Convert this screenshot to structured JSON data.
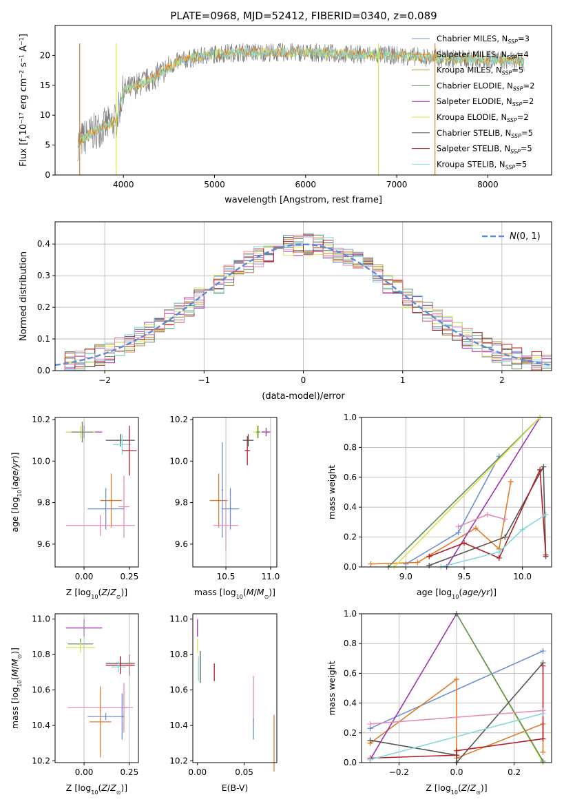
{
  "figure": {
    "title": "PLATE=0968, MJD=52412, FIBERID=0340, z=0.089"
  },
  "colors": {
    "chabrier_miles": "#6b8fd6",
    "salpeter_miles": "#e07b2a",
    "kroupa_miles": "#b08a45",
    "chabrier_elodie": "#5f8c5f",
    "salpeter_elodie": "#a030b0",
    "kroupa_elodie": "#d8e64a",
    "chabrier_stelib": "#555555",
    "salpeter_stelib": "#b01e24",
    "kroupa_stelib": "#84d8dd",
    "pink": "#e68ab8",
    "spectrum_data": "#808080",
    "normal": "#5b8dd6"
  },
  "chart_data": [
    {
      "id": "spectrum",
      "type": "line",
      "title": "PLATE=0968, MJD=52412, FIBERID=0340, z=0.089",
      "xlabel": "wavelength [Angstrom, rest frame]",
      "ylabel": "Flux [f",
      "xlim": [
        3250,
        8700
      ],
      "ylim": [
        0,
        25
      ],
      "xticks": [
        4000,
        5000,
        6000,
        7000,
        8000
      ],
      "yticks": [
        0,
        5,
        10,
        15,
        20
      ],
      "spikes": [
        {
          "x": 3520,
          "color": "#e07b2a"
        },
        {
          "x": 3920,
          "color": "#d8e64a"
        },
        {
          "x": 6800,
          "color": "#d8e64a"
        },
        {
          "x": 7420,
          "color": "#e07b2a"
        }
      ],
      "continuum": {
        "x": [
          3500,
          3700,
          3920,
          4000,
          4300,
          4600,
          4900,
          5200,
          5600,
          6000,
          6500,
          7000,
          7500,
          8000,
          8400
        ],
        "y": [
          5.5,
          7.5,
          9,
          14,
          16,
          19,
          20,
          20.5,
          20.5,
          20.5,
          20.2,
          20,
          19.5,
          19.3,
          19
        ]
      },
      "legend": [
        {
          "label": "Chabrier MILES, N",
          "n": "=3",
          "color": "#6b8fd6"
        },
        {
          "label": "Salpeter MILES, N",
          "n": "=4",
          "color": "#e07b2a"
        },
        {
          "label": "Kroupa MILES, N",
          "n": "=5",
          "color": "#b08a45"
        },
        {
          "label": "Chabrier ELODIE, N",
          "n": "=2",
          "color": "#5f8c5f"
        },
        {
          "label": "Salpeter ELODIE, N",
          "n": "=2",
          "color": "#a030b0"
        },
        {
          "label": "Kroupa ELODIE, N",
          "n": "=2",
          "color": "#d8e64a"
        },
        {
          "label": "Chabrier STELIB, N",
          "n": "=5",
          "color": "#555555"
        },
        {
          "label": "Salpeter STELIB, N",
          "n": "=5",
          "color": "#b01e24"
        },
        {
          "label": "Kroupa STELIB, N",
          "n": "=5",
          "color": "#84d8dd"
        }
      ],
      "legend_sub": "SSP",
      "legend_placement": "top-right"
    },
    {
      "id": "residuals",
      "type": "line",
      "xlabel": "(data-model)/error",
      "ylabel": "Normed distribution",
      "xlim": [
        -2.5,
        2.5
      ],
      "ylim": [
        0,
        0.47
      ],
      "xticks": [
        -2,
        -1,
        0,
        1,
        2
      ],
      "yticks": [
        0.0,
        0.1,
        0.2,
        0.3,
        0.4
      ],
      "grid": true,
      "legend": [
        {
          "label": "N(0,1)",
          "color": "#5b8dd6"
        }
      ],
      "legend_placement": "top-right",
      "series_colors": [
        "#6b8fd6",
        "#e07b2a",
        "#b08a45",
        "#5f8c5f",
        "#a030b0",
        "#d8e64a",
        "#555555",
        "#b01e24",
        "#84d8dd",
        "#e68ab8"
      ]
    },
    {
      "id": "z_age",
      "type": "scatter",
      "xlabel": "Z [log",
      "ylabel": "age  [log",
      "xlim": [
        -0.16,
        0.3
      ],
      "ylim": [
        9.49,
        10.21
      ],
      "xticks": [
        0.0,
        0.25
      ],
      "yticks": [
        9.6,
        9.8,
        10.0,
        10.2
      ],
      "points": [
        {
          "x": 0.0,
          "y": 10.14,
          "xe": 0.1,
          "ye": 0.03,
          "color": "#a030b0"
        },
        {
          "x": -0.02,
          "y": 10.14,
          "xe": 0.08,
          "ye": 0.03,
          "color": "#d8e64a"
        },
        {
          "x": -0.01,
          "y": 10.14,
          "xe": 0.06,
          "ye": 0.05,
          "color": "#5f8c5f"
        },
        {
          "x": 0.2,
          "y": 10.1,
          "xe": 0.08,
          "ye": 0.03,
          "color": "#555555"
        },
        {
          "x": 0.21,
          "y": 10.08,
          "xe": 0.05,
          "ye": 0.05,
          "color": "#84d8dd"
        },
        {
          "x": 0.25,
          "y": 10.05,
          "xe": 0.04,
          "ye": 0.12,
          "color": "#b01e24"
        },
        {
          "x": 0.15,
          "y": 9.81,
          "xe": 0.06,
          "ye": 0.13,
          "color": "#e07b2a"
        },
        {
          "x": 0.22,
          "y": 9.78,
          "xe": 0.03,
          "ye": 0.15,
          "color": "#e68ab8"
        },
        {
          "x": 0.12,
          "y": 9.77,
          "xe": 0.1,
          "ye": 0.1,
          "color": "#6b8fd6"
        },
        {
          "x": 0.09,
          "y": 9.69,
          "xe": 0.19,
          "ye": 0.05,
          "color": "#e68ab8"
        }
      ]
    },
    {
      "id": "mass_age",
      "type": "scatter",
      "xlabel": "mass [log",
      "ylabel": "",
      "xlim": [
        10.13,
        11.07
      ],
      "ylim": [
        9.49,
        10.21
      ],
      "xticks": [
        10.5,
        11.0
      ],
      "yticks": [
        9.6,
        9.8,
        10.0,
        10.2
      ],
      "points": [
        {
          "x": 10.95,
          "y": 10.14,
          "xe": 0.05,
          "ye": 0.02,
          "color": "#a030b0"
        },
        {
          "x": 10.85,
          "y": 10.14,
          "xe": 0.05,
          "ye": 0.03,
          "color": "#d8e64a"
        },
        {
          "x": 10.86,
          "y": 10.14,
          "xe": 0.02,
          "ye": 0.03,
          "color": "#5f8c5f"
        },
        {
          "x": 10.75,
          "y": 10.1,
          "xe": 0.06,
          "ye": 0.03,
          "color": "#555555"
        },
        {
          "x": 10.74,
          "y": 10.05,
          "xe": 0.03,
          "ye": 0.07,
          "color": "#b01e24"
        },
        {
          "x": 10.42,
          "y": 9.81,
          "xe": 0.1,
          "ye": 0.13,
          "color": "#e07b2a"
        },
        {
          "x": 10.46,
          "y": 9.86,
          "xe": 0.01,
          "ye": 0.23,
          "color": "#6b8fd6"
        },
        {
          "x": 10.55,
          "y": 9.77,
          "xe": 0.1,
          "ye": 0.1,
          "color": "#6b8fd6"
        },
        {
          "x": 10.5,
          "y": 9.69,
          "xe": 0.14,
          "ye": 0.12,
          "color": "#e68ab8"
        }
      ]
    },
    {
      "id": "age_weight",
      "type": "line",
      "xlabel": "age  [log",
      "ylabel": "mass weight",
      "xlim": [
        8.62,
        10.25
      ],
      "ylim": [
        0,
        1
      ],
      "xticks": [
        9.0,
        9.5,
        10.0
      ],
      "yticks": [
        0.0,
        0.2,
        0.4,
        0.6,
        0.8,
        1.0
      ],
      "grid": true,
      "series": [
        {
          "color": "#6b8fd6",
          "x": [
            9.0,
            9.45,
            9.8
          ],
          "y": [
            0.02,
            0.23,
            0.74
          ]
        },
        {
          "color": "#e07b2a",
          "x": [
            8.7,
            9.1,
            9.6,
            9.8,
            9.9
          ],
          "y": [
            0.02,
            0.03,
            0.26,
            0.12,
            0.57
          ]
        },
        {
          "color": "#5f8c5f",
          "x": [
            8.85,
            10.15
          ],
          "y": [
            0.0,
            1.0
          ]
        },
        {
          "color": "#a030b0",
          "x": [
            9.35,
            10.15
          ],
          "y": [
            0.0,
            1.0
          ]
        },
        {
          "color": "#d8e64a",
          "x": [
            8.9,
            10.15
          ],
          "y": [
            0.0,
            1.0
          ]
        },
        {
          "color": "#555555",
          "x": [
            9.2,
            9.85,
            10.18,
            10.2
          ],
          "y": [
            0.01,
            0.2,
            0.67,
            0.07
          ]
        },
        {
          "color": "#b01e24",
          "x": [
            9.2,
            9.5,
            9.8,
            10.15,
            10.2
          ],
          "y": [
            0.07,
            0.16,
            0.06,
            0.65,
            0.08
          ]
        },
        {
          "color": "#84d8dd",
          "x": [
            9.3,
            9.8,
            10.0,
            10.2
          ],
          "y": [
            0.0,
            0.1,
            0.25,
            0.35
          ]
        },
        {
          "color": "#e68ab8",
          "x": [
            9.45,
            9.7,
            9.85
          ],
          "y": [
            0.27,
            0.35,
            0.32
          ]
        }
      ]
    },
    {
      "id": "z_mass",
      "type": "scatter",
      "xlabel": "Z [log",
      "ylabel": "mass [log",
      "xlim": [
        -0.16,
        0.3
      ],
      "ylim": [
        10.19,
        11.03
      ],
      "xticks": [
        0.0,
        0.25
      ],
      "yticks": [
        10.2,
        10.4,
        10.6,
        10.8,
        11.0
      ],
      "points": [
        {
          "x": 0.0,
          "y": 10.95,
          "xe": 0.1,
          "ye": 0.05,
          "color": "#a030b0"
        },
        {
          "x": -0.02,
          "y": 10.86,
          "xe": 0.07,
          "ye": 0.03,
          "color": "#5f8c5f"
        },
        {
          "x": -0.02,
          "y": 10.84,
          "xe": 0.08,
          "ye": 0.03,
          "color": "#d8e64a"
        },
        {
          "x": 0.2,
          "y": 10.75,
          "xe": 0.08,
          "ye": 0.04,
          "color": "#555555"
        },
        {
          "x": 0.2,
          "y": 10.74,
          "xe": 0.08,
          "ye": 0.05,
          "color": "#b01e24"
        },
        {
          "x": 0.25,
          "y": 10.74,
          "xe": 0.02,
          "ye": 0.06,
          "color": "#b01e24"
        },
        {
          "x": 0.19,
          "y": 10.73,
          "xe": 0.04,
          "ye": 0.03,
          "color": "#84d8dd"
        },
        {
          "x": 0.22,
          "y": 10.5,
          "xe": 0.02,
          "ye": 0.14,
          "color": "#e68ab8"
        },
        {
          "x": 0.09,
          "y": 10.5,
          "xe": 0.18,
          "ye": 0.02,
          "color": "#e68ab8"
        },
        {
          "x": 0.12,
          "y": 10.45,
          "xe": 0.1,
          "ye": 0.02,
          "color": "#6b8fd6"
        },
        {
          "x": 0.21,
          "y": 10.45,
          "xe": 0.01,
          "ye": 0.13,
          "color": "#6b8fd6"
        },
        {
          "x": 0.09,
          "y": 10.42,
          "xe": 0.06,
          "ye": 0.2,
          "color": "#e07b2a"
        }
      ]
    },
    {
      "id": "ebv_mass",
      "type": "scatter",
      "xlabel": "E(B-V)",
      "ylabel": "",
      "xlim": [
        -0.005,
        0.085
      ],
      "ylim": [
        10.19,
        11.03
      ],
      "xticks": [
        0.0,
        0.05
      ],
      "yticks": [
        10.2,
        10.4,
        10.6,
        10.8,
        11.0
      ],
      "points": [
        {
          "x": 0.0,
          "y": 10.95,
          "ye": 0.05,
          "color": "#a030b0"
        },
        {
          "x": 0.0,
          "y": 10.85,
          "ye": 0.04,
          "color": "#d8e64a"
        },
        {
          "x": 0.001,
          "y": 10.72,
          "ye": 0.07,
          "color": "#84d8dd"
        },
        {
          "x": 0.003,
          "y": 10.73,
          "ye": 0.09,
          "color": "#555555"
        },
        {
          "x": 0.018,
          "y": 10.7,
          "ye": 0.05,
          "color": "#b01e24"
        },
        {
          "x": 0.06,
          "y": 10.55,
          "ye": 0.13,
          "color": "#e68ab8"
        },
        {
          "x": 0.06,
          "y": 10.38,
          "ye": 0.06,
          "color": "#6b8fd6"
        },
        {
          "x": 0.082,
          "y": 10.3,
          "ye": 0.16,
          "color": "#e07b2a"
        }
      ]
    },
    {
      "id": "z_weight",
      "type": "line",
      "xlabel": "Z [log",
      "ylabel": "mass weight",
      "xlim": [
        -0.33,
        0.33
      ],
      "ylim": [
        0,
        1
      ],
      "xticks": [
        -0.2,
        0.0,
        0.2
      ],
      "yticks": [
        0.0,
        0.2,
        0.4,
        0.6,
        0.8,
        1.0
      ],
      "grid": true,
      "series": [
        {
          "color": "#6b8fd6",
          "x": [
            -0.3,
            0.3
          ],
          "y": [
            0.23,
            0.75
          ]
        },
        {
          "color": "#e07b2a",
          "x": [
            -0.3,
            0.0,
            0.0,
            0.3,
            0.3
          ],
          "y": [
            0.13,
            0.56,
            0.03,
            0.26,
            0.07
          ]
        },
        {
          "color": "#a030b0",
          "x": [
            -0.3,
            0.0
          ],
          "y": [
            0.02,
            1.0
          ]
        },
        {
          "color": "#d8e64a",
          "x": [
            0.0,
            0.3
          ],
          "y": [
            1.0,
            0.0
          ]
        },
        {
          "color": "#5f8c5f",
          "x": [
            0.0,
            0.3
          ],
          "y": [
            1.0,
            0.01
          ]
        },
        {
          "color": "#555555",
          "x": [
            -0.3,
            0.0,
            0.0,
            0.3
          ],
          "y": [
            0.15,
            0.05,
            0.0,
            0.67
          ]
        },
        {
          "color": "#b01e24",
          "x": [
            -0.3,
            0.0,
            0.0,
            0.3,
            0.3
          ],
          "y": [
            0.03,
            0.05,
            0.08,
            0.16,
            0.65
          ]
        },
        {
          "color": "#84d8dd",
          "x": [
            -0.3,
            0.3
          ],
          "y": [
            0.02,
            0.33
          ]
        },
        {
          "color": "#e68ab8",
          "x": [
            -0.3,
            0.3
          ],
          "y": [
            0.26,
            0.35
          ]
        }
      ]
    }
  ]
}
